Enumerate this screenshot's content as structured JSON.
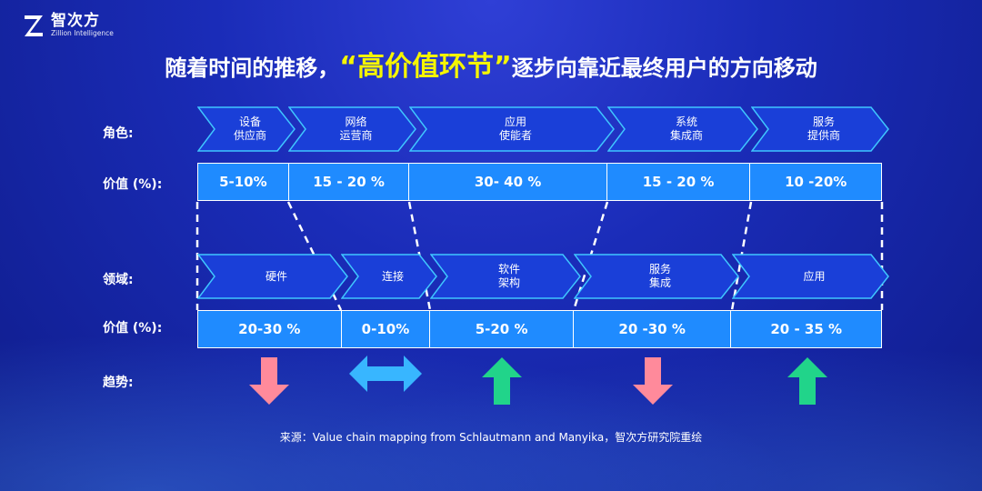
{
  "logo": {
    "name": "智次方",
    "subtitle": "Zillion Intelligence"
  },
  "title": {
    "prefix": "随着时间的推移，",
    "highlight": "“高价值环节”",
    "suffix": "逐步向靠近最终用户的方向移动"
  },
  "roles": {
    "label": "角色:",
    "items": [
      "设备\n供应商",
      "网络\n运营商",
      "应用\n使能者",
      "系统\n集成商",
      "服务\n提供商"
    ]
  },
  "role_values": {
    "label": "价值 (%):",
    "items": [
      "5-10%",
      "15 - 20 %",
      "30- 40 %",
      "15 - 20 %",
      "10 -20%"
    ]
  },
  "domains": {
    "label": "领域:",
    "items": [
      "硬件",
      "连接",
      "软件\n架构",
      "服务\n集成",
      "应用"
    ]
  },
  "domain_values": {
    "label": "价值 (%):",
    "items": [
      "20-30 %",
      "0-10%",
      "5-20 %",
      "20 -30 %",
      "20 - 35 %"
    ]
  },
  "trend": {
    "label": "趋势:",
    "items": [
      "down",
      "both",
      "up",
      "down",
      "up"
    ]
  },
  "colors": {
    "down": "#ff8a9b",
    "up": "#21d48a",
    "both": "#38b6ff",
    "highlight": "#f5f500",
    "bar": "#1f8bff"
  },
  "source": "来源：Value chain mapping from Schlautmann and Manyika，智次方研究院重绘"
}
